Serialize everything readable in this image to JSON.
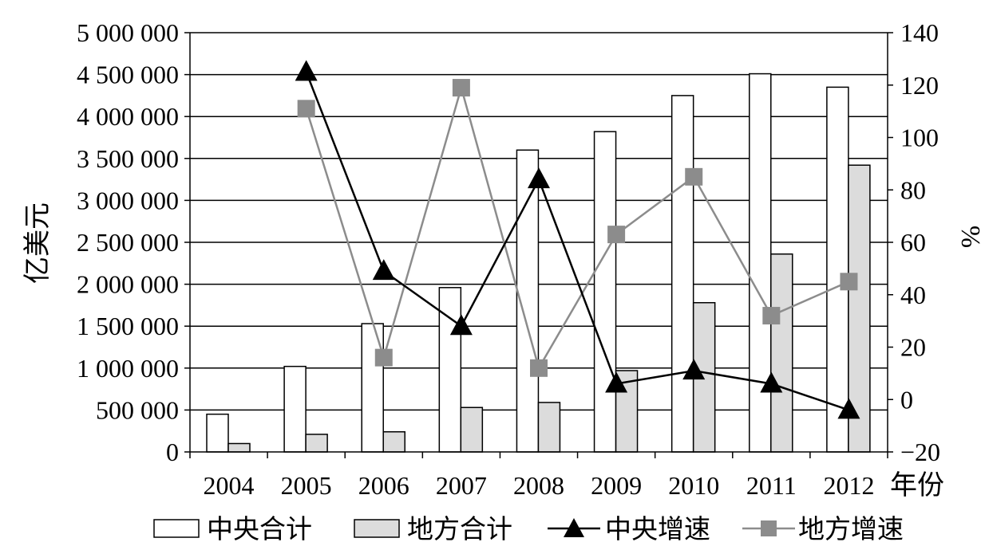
{
  "chart_data": {
    "type": "bar",
    "categories": [
      "2004",
      "2005",
      "2006",
      "2007",
      "2008",
      "2009",
      "2010",
      "2011",
      "2012"
    ],
    "xlabel": "年份",
    "ylabel": "亿美元",
    "ylabel_right": "%",
    "ylim": [
      0,
      5000000
    ],
    "ylim_right": [
      -20,
      140
    ],
    "yticks": [
      "0",
      "500 000",
      "1 000 000",
      "1 500 000",
      "2 000 000",
      "2 500 000",
      "3 000 000",
      "3 500 000",
      "4 000 000",
      "4 500 000",
      "5 000 000"
    ],
    "yticks_right": [
      "−20",
      "0",
      "20",
      "40",
      "60",
      "80",
      "100",
      "120",
      "140"
    ],
    "grid": true,
    "legend_position": "bottom",
    "series": [
      {
        "name": "中央合计",
        "type": "bar",
        "axis": "left",
        "color": "#ffffff",
        "values": [
          450000,
          1020000,
          1530000,
          1960000,
          3600000,
          3820000,
          4250000,
          4510000,
          4350000
        ]
      },
      {
        "name": "地方合计",
        "type": "bar",
        "axis": "left",
        "color": "#dcdcdc",
        "values": [
          100000,
          210000,
          240000,
          530000,
          590000,
          970000,
          1780000,
          2360000,
          3420000
        ]
      },
      {
        "name": "中央增速",
        "type": "line",
        "axis": "right",
        "color": "#000000",
        "marker": "triangle",
        "values": [
          null,
          125,
          49,
          28,
          84,
          6,
          11,
          6,
          -4
        ]
      },
      {
        "name": "地方增速",
        "type": "line",
        "axis": "right",
        "color": "#8c8c8c",
        "marker": "square",
        "values": [
          null,
          111,
          16,
          119,
          12,
          63,
          85,
          32,
          45
        ]
      }
    ]
  }
}
